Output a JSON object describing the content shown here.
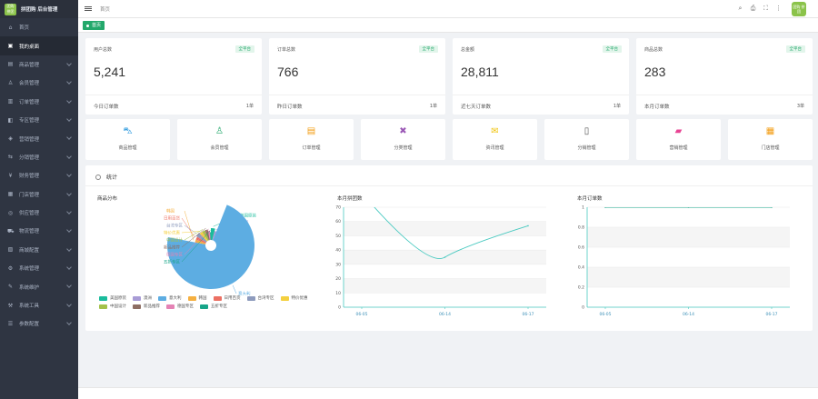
{
  "app": {
    "title": "拼团购 后台管理",
    "logo_text": "团购 拼团"
  },
  "sidebar": {
    "items": [
      {
        "label": "首页",
        "icon": "home-icon",
        "glyph": "⌂",
        "active": false,
        "has_children": false
      },
      {
        "label": "我的桌面",
        "icon": "desktop-icon",
        "glyph": "▣",
        "active": true,
        "has_children": false
      },
      {
        "label": "商品管理",
        "icon": "goods-icon",
        "glyph": "▤",
        "active": false,
        "has_children": true
      },
      {
        "label": "会员管理",
        "icon": "member-icon",
        "glyph": "♙",
        "active": false,
        "has_children": true
      },
      {
        "label": "订单管理",
        "icon": "order-icon",
        "glyph": "▥",
        "active": false,
        "has_children": true
      },
      {
        "label": "专区管理",
        "icon": "zone-icon",
        "glyph": "◧",
        "active": false,
        "has_children": true
      },
      {
        "label": "营销管理",
        "icon": "marketing-icon",
        "glyph": "◈",
        "active": false,
        "has_children": true
      },
      {
        "label": "分销管理",
        "icon": "distribution-icon",
        "glyph": "⇆",
        "active": false,
        "has_children": true
      },
      {
        "label": "财务管理",
        "icon": "finance-icon",
        "glyph": "¥",
        "active": false,
        "has_children": true
      },
      {
        "label": "门店管理",
        "icon": "store-icon",
        "glyph": "▦",
        "active": false,
        "has_children": true
      },
      {
        "label": "供应管理",
        "icon": "supply-icon",
        "glyph": "◎",
        "active": false,
        "has_children": true
      },
      {
        "label": "物流管理",
        "icon": "logistics-icon",
        "glyph": "⛟",
        "active": false,
        "has_children": true
      },
      {
        "label": "商城配置",
        "icon": "config-icon",
        "glyph": "▧",
        "active": false,
        "has_children": true
      },
      {
        "label": "系统管理",
        "icon": "system-icon",
        "glyph": "⚙",
        "active": false,
        "has_children": true
      },
      {
        "label": "系统维护",
        "icon": "maintenance-icon",
        "glyph": "✎",
        "active": false,
        "has_children": true
      },
      {
        "label": "系统工具",
        "icon": "tools-icon",
        "glyph": "⚒",
        "active": false,
        "has_children": true
      },
      {
        "label": "参数配置",
        "icon": "params-icon",
        "glyph": "☰",
        "active": false,
        "has_children": true
      }
    ]
  },
  "header": {
    "breadcrumb": "首页",
    "icons": [
      {
        "name": "search-icon",
        "glyph": "⌕"
      },
      {
        "name": "print-icon",
        "glyph": "⎙"
      },
      {
        "name": "fullscreen-icon",
        "glyph": "⛶"
      },
      {
        "name": "more-icon",
        "glyph": "⋮"
      }
    ],
    "avatar_text": "团购 拼团"
  },
  "tabs": [
    {
      "label": "首页"
    }
  ],
  "stats": [
    {
      "title": "用户总数",
      "badge": "全平台",
      "value": "5,241",
      "foot_label": "今日订单数",
      "foot_value": "1单"
    },
    {
      "title": "订单总数",
      "badge": "全平台",
      "value": "766",
      "foot_label": "昨日订单数",
      "foot_value": "1单"
    },
    {
      "title": "总金额",
      "badge": "全平台",
      "value": "28,811",
      "foot_label": "近七天订单数",
      "foot_value": "1单"
    },
    {
      "title": "商品总数",
      "badge": "全平台",
      "value": "283",
      "foot_label": "本月订单数",
      "foot_value": "3单"
    }
  ],
  "shortcuts": [
    {
      "label": "商品管理",
      "icon": "bag-icon",
      "glyph": "⛍",
      "color": "#3aa0e0"
    },
    {
      "label": "会员管理",
      "icon": "user-icon",
      "glyph": "♙",
      "color": "#23a86b"
    },
    {
      "label": "订单管理",
      "icon": "clipboard-icon",
      "glyph": "▤",
      "color": "#f39c12"
    },
    {
      "label": "分类管理",
      "icon": "category-icon",
      "glyph": "✖",
      "color": "#9b59b6"
    },
    {
      "label": "资讯管理",
      "icon": "news-icon",
      "glyph": "✉",
      "color": "#f1c40f"
    },
    {
      "label": "分销管理",
      "icon": "phone-icon",
      "glyph": "▯",
      "color": "#555555"
    },
    {
      "label": "营销管理",
      "icon": "wallet-icon",
      "glyph": "▰",
      "color": "#e84393"
    },
    {
      "label": "门店管理",
      "icon": "store-icon",
      "glyph": "▦",
      "color": "#f39c12"
    }
  ],
  "panel": {
    "title": "统计"
  },
  "chart_data": [
    {
      "type": "pie",
      "title": "商品分布",
      "categories": [
        "美国原装",
        "澳洲",
        "意大利",
        "韩国",
        "日用百货",
        "台湾专区",
        "特价优惠",
        "中国设计",
        "新品推荐",
        "德国专区",
        "五折专区"
      ],
      "values": [
        4,
        2,
        72,
        3,
        3,
        4,
        3,
        3,
        3,
        2,
        1
      ],
      "colors": [
        "#1abc9c",
        "#a89cd6",
        "#5dade2",
        "#f5b041",
        "#ec7063",
        "#8e9bbd",
        "#f4d03f",
        "#a3c14a",
        "#8d6e63",
        "#e583b5",
        "#17a589"
      ]
    },
    {
      "type": "line",
      "title": "本月拼团数",
      "categories": [
        "06-05",
        "06-14",
        "06-17"
      ],
      "x": [
        "06-05",
        "06-14",
        "06-17"
      ],
      "values": [
        80,
        35,
        57
      ],
      "ylim": [
        0,
        70
      ],
      "yticks": [
        0,
        10,
        20,
        30,
        40,
        50,
        60,
        70
      ],
      "color": "#48c9c0"
    },
    {
      "type": "line",
      "title": "本月订单数",
      "categories": [
        "06-05",
        "06-14",
        "06-17"
      ],
      "x": [
        "06-05",
        "06-14",
        "06-17"
      ],
      "values": [
        1,
        1,
        1
      ],
      "ylim": [
        0,
        1
      ],
      "yticks": [
        0,
        0.2,
        0.4,
        0.6,
        0.8,
        1
      ],
      "color": "#17a589"
    }
  ]
}
